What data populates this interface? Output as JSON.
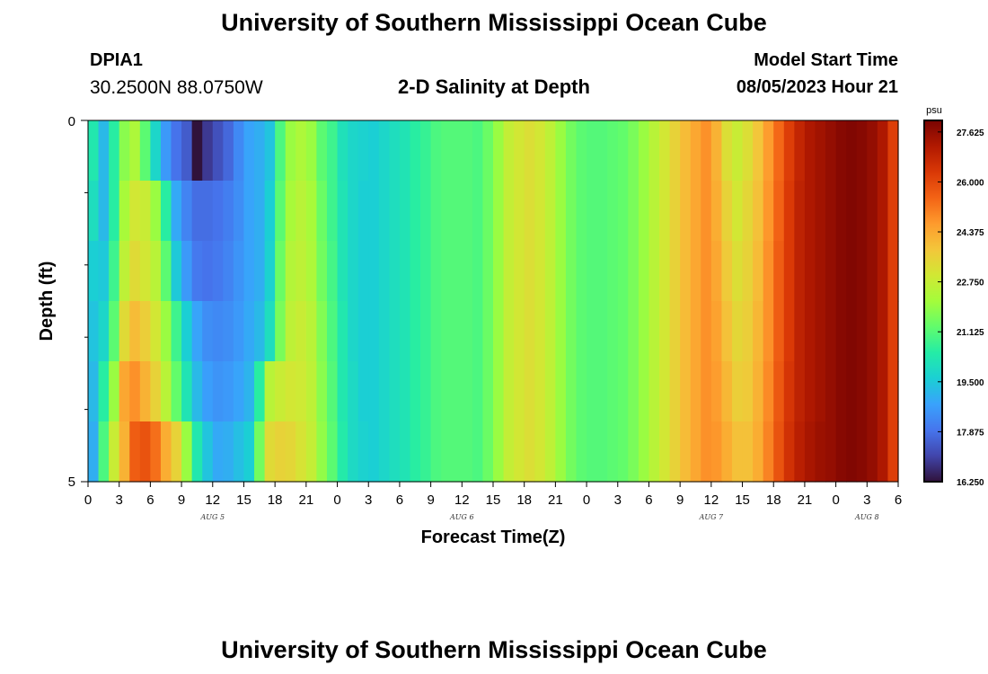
{
  "header": {
    "title": "University of Southern Mississippi Ocean Cube",
    "station_id": "DPIA1",
    "coords": "30.2500N  88.0750W",
    "subtitle": "2-D Salinity at Depth",
    "model_label": "Model Start Time",
    "model_time": "08/05/2023 Hour 21"
  },
  "footer": {
    "title": "University of Southern Mississippi Ocean Cube"
  },
  "chart_data": {
    "type": "heatmap",
    "title": "2-D Salinity at Depth",
    "xlabel": "Forecast Time(Z)",
    "ylabel": "Depth (ft)",
    "y_tick_labels": [
      "0",
      "5"
    ],
    "ylim": [
      0,
      5
    ],
    "x_range_hours": [
      0,
      78
    ],
    "x_tick_labels": [
      "0",
      "3",
      "6",
      "9",
      "12",
      "15",
      "18",
      "21",
      "0",
      "3",
      "6",
      "9",
      "12",
      "15",
      "18",
      "21",
      "0",
      "3",
      "6",
      "9",
      "12",
      "15",
      "18",
      "21",
      "0",
      "3",
      "6"
    ],
    "date_labels": [
      {
        "text": "AUG 5",
        "hour": 12
      },
      {
        "text": "AUG 6",
        "hour": 36
      },
      {
        "text": "AUG 7",
        "hour": 60
      },
      {
        "text": "AUG 8",
        "hour": 75
      }
    ],
    "colorbar": {
      "unit": "psu",
      "min": 16.25,
      "max": 28.0,
      "labels": [
        "27.625",
        "26.000",
        "24.375",
        "22.750",
        "21.125",
        "19.500",
        "17.875",
        "16.250"
      ],
      "colors": [
        "#30123b",
        "#4145ab",
        "#4675ed",
        "#39a2fc",
        "#1bcfd4",
        "#24eca6",
        "#61fc6c",
        "#a4fc3b",
        "#d1e834",
        "#f3c63a",
        "#fe9b2d",
        "#f36315",
        "#d93806",
        "#b11901",
        "#7a0402"
      ]
    },
    "depth_rows": [
      {
        "name": "0 ft",
        "values": [
          20.3,
          19.2,
          20.5,
          21.8,
          22.3,
          21.2,
          19.8,
          18.6,
          17.9,
          17.5,
          16.2,
          16.9,
          17.3,
          17.7,
          18.3,
          18.8,
          19.0,
          19.4,
          21.0,
          22.0,
          22.3,
          22.0,
          21.2,
          20.8,
          20.1,
          19.8,
          19.7,
          19.6,
          19.8,
          20.0,
          20.2,
          20.5,
          20.7,
          21.0,
          21.1,
          21.1,
          21.1,
          21.0,
          21.4,
          22.0,
          22.7,
          23.0,
          23.2,
          23.0,
          22.6,
          22.0,
          21.5,
          21.2,
          21.1,
          21.1,
          21.2,
          21.3,
          21.6,
          22.0,
          22.5,
          23.0,
          23.5,
          24.0,
          24.4,
          24.8,
          24.2,
          23.2,
          22.8,
          23.2,
          23.8,
          24.6,
          25.4,
          26.2,
          26.8,
          27.2,
          27.4,
          27.6,
          27.8,
          27.9,
          27.8,
          27.6,
          27.2,
          26.2
        ]
      },
      {
        "name": "1 ft",
        "values": [
          20.0,
          19.2,
          20.5,
          22.2,
          23.0,
          22.8,
          22.0,
          20.5,
          18.9,
          18.2,
          17.8,
          17.8,
          17.9,
          18.1,
          18.4,
          18.8,
          19.0,
          19.6,
          21.2,
          22.2,
          22.5,
          22.2,
          21.4,
          20.8,
          20.2,
          19.8,
          19.6,
          19.6,
          19.8,
          20.0,
          20.2,
          20.5,
          20.7,
          21.0,
          21.1,
          21.1,
          21.1,
          21.0,
          21.4,
          22.0,
          22.7,
          23.0,
          23.2,
          23.0,
          22.6,
          22.0,
          21.5,
          21.2,
          21.1,
          21.1,
          21.2,
          21.3,
          21.6,
          22.0,
          22.5,
          23.0,
          23.5,
          24.0,
          24.4,
          24.8,
          24.3,
          23.5,
          23.0,
          23.4,
          23.9,
          24.7,
          25.5,
          26.3,
          26.9,
          27.2,
          27.4,
          27.6,
          27.8,
          27.9,
          27.8,
          27.6,
          27.2,
          26.2
        ]
      },
      {
        "name": "2 ft",
        "values": [
          19.6,
          19.5,
          20.8,
          22.6,
          23.3,
          23.0,
          22.5,
          21.2,
          19.5,
          18.6,
          18.0,
          17.9,
          18.0,
          18.2,
          18.5,
          18.8,
          19.0,
          19.7,
          21.4,
          22.4,
          22.6,
          22.3,
          21.5,
          20.9,
          20.2,
          19.8,
          19.6,
          19.6,
          19.8,
          20.0,
          20.2,
          20.5,
          20.7,
          21.0,
          21.1,
          21.1,
          21.1,
          21.0,
          21.4,
          22.0,
          22.7,
          23.0,
          23.2,
          23.0,
          22.6,
          22.0,
          21.5,
          21.2,
          21.1,
          21.1,
          21.2,
          21.3,
          21.6,
          22.0,
          22.5,
          23.0,
          23.5,
          24.0,
          24.4,
          24.8,
          24.4,
          23.7,
          23.2,
          23.5,
          24.0,
          24.8,
          25.6,
          26.3,
          26.9,
          27.2,
          27.4,
          27.6,
          27.8,
          27.9,
          27.8,
          27.6,
          27.2,
          26.2
        ]
      },
      {
        "name": "3 ft",
        "values": [
          19.4,
          19.8,
          21.2,
          23.3,
          24.0,
          23.6,
          23.0,
          22.0,
          20.8,
          19.6,
          18.8,
          18.4,
          18.3,
          18.4,
          18.6,
          18.9,
          19.2,
          20.0,
          21.6,
          22.6,
          22.8,
          22.5,
          21.7,
          21.0,
          20.3,
          19.8,
          19.6,
          19.6,
          19.8,
          20.0,
          20.2,
          20.5,
          20.7,
          21.0,
          21.1,
          21.1,
          21.1,
          21.0,
          21.4,
          22.0,
          22.7,
          23.0,
          23.2,
          23.0,
          22.6,
          22.0,
          21.5,
          21.2,
          21.1,
          21.1,
          21.2,
          21.3,
          21.6,
          22.0,
          22.5,
          23.0,
          23.5,
          24.0,
          24.4,
          24.8,
          24.5,
          23.9,
          23.4,
          23.6,
          24.1,
          24.8,
          25.6,
          26.3,
          26.9,
          27.2,
          27.4,
          27.6,
          27.8,
          27.9,
          27.8,
          27.6,
          27.2,
          26.2
        ]
      },
      {
        "name": "4 ft",
        "values": [
          19.2,
          20.5,
          22.0,
          24.4,
          24.8,
          24.2,
          23.5,
          22.5,
          21.3,
          20.2,
          19.2,
          18.7,
          18.5,
          18.6,
          18.8,
          19.1,
          20.5,
          22.5,
          22.8,
          23.0,
          22.9,
          22.6,
          21.8,
          21.1,
          20.3,
          19.9,
          19.6,
          19.6,
          19.8,
          20.0,
          20.2,
          20.5,
          20.7,
          21.0,
          21.1,
          21.1,
          21.1,
          21.0,
          21.4,
          22.0,
          22.7,
          23.0,
          23.2,
          23.0,
          22.6,
          22.0,
          21.5,
          21.2,
          21.1,
          21.1,
          21.2,
          21.3,
          21.6,
          22.0,
          22.5,
          23.0,
          23.5,
          24.0,
          24.4,
          24.8,
          24.6,
          24.1,
          23.6,
          23.7,
          24.2,
          24.9,
          25.7,
          26.4,
          26.9,
          27.2,
          27.4,
          27.6,
          27.8,
          27.9,
          27.8,
          27.6,
          27.2,
          26.2
        ]
      },
      {
        "name": "5 ft",
        "values": [
          19.0,
          21.0,
          22.8,
          24.2,
          25.6,
          25.8,
          25.3,
          24.3,
          23.5,
          22.0,
          20.3,
          19.4,
          18.9,
          19.0,
          19.3,
          19.6,
          21.5,
          23.3,
          23.5,
          23.4,
          23.1,
          22.7,
          21.9,
          21.2,
          20.4,
          19.9,
          19.7,
          19.6,
          19.8,
          20.0,
          20.2,
          20.5,
          20.7,
          21.0,
          21.1,
          21.1,
          21.1,
          21.0,
          21.4,
          22.0,
          22.7,
          23.0,
          23.2,
          23.0,
          22.6,
          22.0,
          21.5,
          21.2,
          21.1,
          21.1,
          21.2,
          21.3,
          21.6,
          22.0,
          22.5,
          23.0,
          23.5,
          24.0,
          24.4,
          24.8,
          24.7,
          24.3,
          23.9,
          23.9,
          24.3,
          25.0,
          25.8,
          26.5,
          27.0,
          27.3,
          27.5,
          27.6,
          27.8,
          27.9,
          27.8,
          27.6,
          27.2,
          26.2
        ]
      }
    ]
  }
}
